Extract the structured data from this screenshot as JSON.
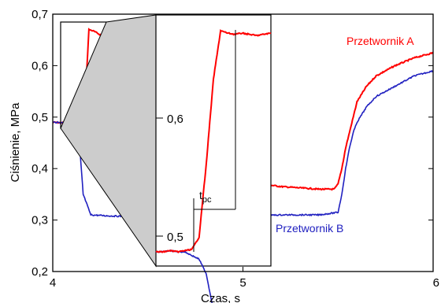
{
  "chart_data": {
    "type": "line",
    "xlabel": "Czas, s",
    "ylabel": "Ciśnienie, MPa",
    "xlim": [
      4,
      6
    ],
    "ylim": [
      0.2,
      0.7
    ],
    "x_ticks": [
      4,
      5,
      6
    ],
    "x_tick_labels": [
      "4",
      "5",
      "6"
    ],
    "y_ticks": [
      0.2,
      0.3,
      0.4,
      0.5,
      0.6,
      0.7
    ],
    "y_tick_labels": [
      "0,2",
      "0,3",
      "0,4",
      "0,5",
      "0,6",
      "0,7"
    ],
    "grid": false,
    "series": [
      {
        "name": "Przetwornik A",
        "color": "#ff0000",
        "x": [
          4.0,
          4.1,
          4.16,
          4.17,
          4.18,
          4.19,
          4.2,
          4.21,
          4.25,
          4.3,
          4.45,
          4.6,
          4.9,
          5.2,
          5.4,
          5.48,
          5.5,
          5.52,
          5.54,
          5.56,
          5.58,
          5.6,
          5.65,
          5.7,
          5.8,
          5.9,
          6.0
        ],
        "values": [
          0.49,
          0.488,
          0.49,
          0.52,
          0.6,
          0.67,
          0.669,
          0.668,
          0.66,
          0.62,
          0.53,
          0.46,
          0.38,
          0.365,
          0.36,
          0.36,
          0.37,
          0.4,
          0.44,
          0.47,
          0.5,
          0.53,
          0.56,
          0.58,
          0.6,
          0.615,
          0.625
        ]
      },
      {
        "name": "Przetwornik B",
        "color": "#2020c0",
        "x": [
          4.0,
          4.12,
          4.14,
          4.16,
          4.2,
          4.3,
          4.5,
          4.8,
          5.0,
          5.2,
          5.4,
          5.5,
          5.52,
          5.54,
          5.56,
          5.58,
          5.6,
          5.65,
          5.7,
          5.8,
          5.9,
          6.0
        ],
        "values": [
          0.49,
          0.488,
          0.45,
          0.35,
          0.31,
          0.308,
          0.306,
          0.307,
          0.308,
          0.31,
          0.31,
          0.315,
          0.35,
          0.4,
          0.44,
          0.47,
          0.49,
          0.52,
          0.54,
          0.56,
          0.58,
          0.59
        ]
      }
    ],
    "annotations": {
      "series_a_label": "Przetwornik A",
      "series_b_label": "Przetwornik B",
      "tpc_main": "t",
      "tpc_sub": "pc",
      "inset_tick_06": "0,6",
      "inset_tick_05": "0,5"
    },
    "inset": {
      "x_range": [
        4.158,
        4.2
      ],
      "y_range": [
        0.49,
        0.67
      ],
      "a_values": [
        0.488,
        0.488,
        0.489,
        0.488,
        0.489,
        0.49,
        0.5,
        0.56,
        0.63,
        0.67,
        0.668,
        0.667,
        0.668,
        0.667,
        0.666,
        0.667,
        0.668
      ],
      "b_values": [
        0.488,
        0.488,
        0.489,
        0.488,
        0.488,
        0.485,
        0.482,
        0.47,
        0.44
      ]
    }
  }
}
